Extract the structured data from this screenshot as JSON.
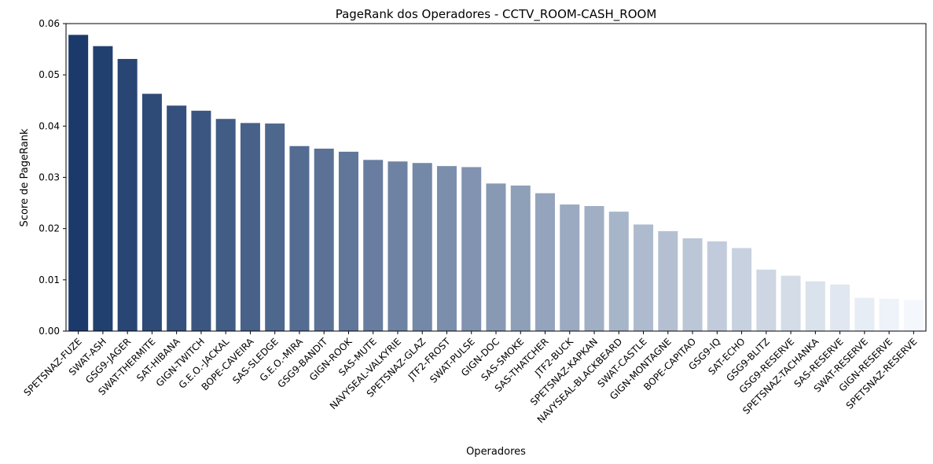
{
  "chart_data": {
    "type": "bar",
    "title": "PageRank dos Operadores - CCTV_ROOM-CASH_ROOM",
    "xlabel": "Operadores",
    "ylabel": "Score de PageRank",
    "ylim": [
      0,
      0.06
    ],
    "yticks": [
      "0.00",
      "0.01",
      "0.02",
      "0.03",
      "0.04",
      "0.05",
      "0.06"
    ],
    "grid": false,
    "color_start": "#1b3a6b",
    "color_end": "#f4f8fd",
    "categories": [
      "SPETSNAZ-FUZE",
      "SWAT-ASH",
      "GSG9-JAGER",
      "SWAT-THERMITE",
      "SAT-HIBANA",
      "GIGN-TWITCH",
      "G.E.O.-JACKAL",
      "BOPE-CAVEIRA",
      "SAS-SLEDGE",
      "G.E.O.-MIRA",
      "GSG9-BANDIT",
      "GIGN-ROOK",
      "SAS-MUTE",
      "NAVYSEAL-VALKYRIE",
      "SPETSNAZ-GLAZ",
      "JTF2-FROST",
      "SWAT-PULSE",
      "GIGN-DOC",
      "SAS-SMOKE",
      "SAS-THATCHER",
      "JTF2-BUCK",
      "SPETSNAZ-KAPKAN",
      "NAVYSEAL-BLACKBEARD",
      "SWAT-CASTLE",
      "GIGN-MONTAGNE",
      "BOPE-CAPITAO",
      "GSG9-IQ",
      "SAT-ECHO",
      "GSG9-BLITZ",
      "GSG9-RESERVE",
      "SPETSNAZ-TACHANKA",
      "SAS-RESERVE",
      "SWAT-RESERVE",
      "GIGN-RESERVE",
      "SPETSNAZ-RESERVE"
    ],
    "values": [
      0.0578,
      0.0556,
      0.0531,
      0.0463,
      0.044,
      0.043,
      0.0414,
      0.0406,
      0.0405,
      0.0361,
      0.0356,
      0.035,
      0.0334,
      0.0331,
      0.0328,
      0.0322,
      0.032,
      0.0288,
      0.0284,
      0.0269,
      0.0247,
      0.0244,
      0.0233,
      0.0208,
      0.0195,
      0.0181,
      0.0175,
      0.0162,
      0.012,
      0.0108,
      0.0097,
      0.0091,
      0.0065,
      0.0063,
      0.0061
    ]
  }
}
